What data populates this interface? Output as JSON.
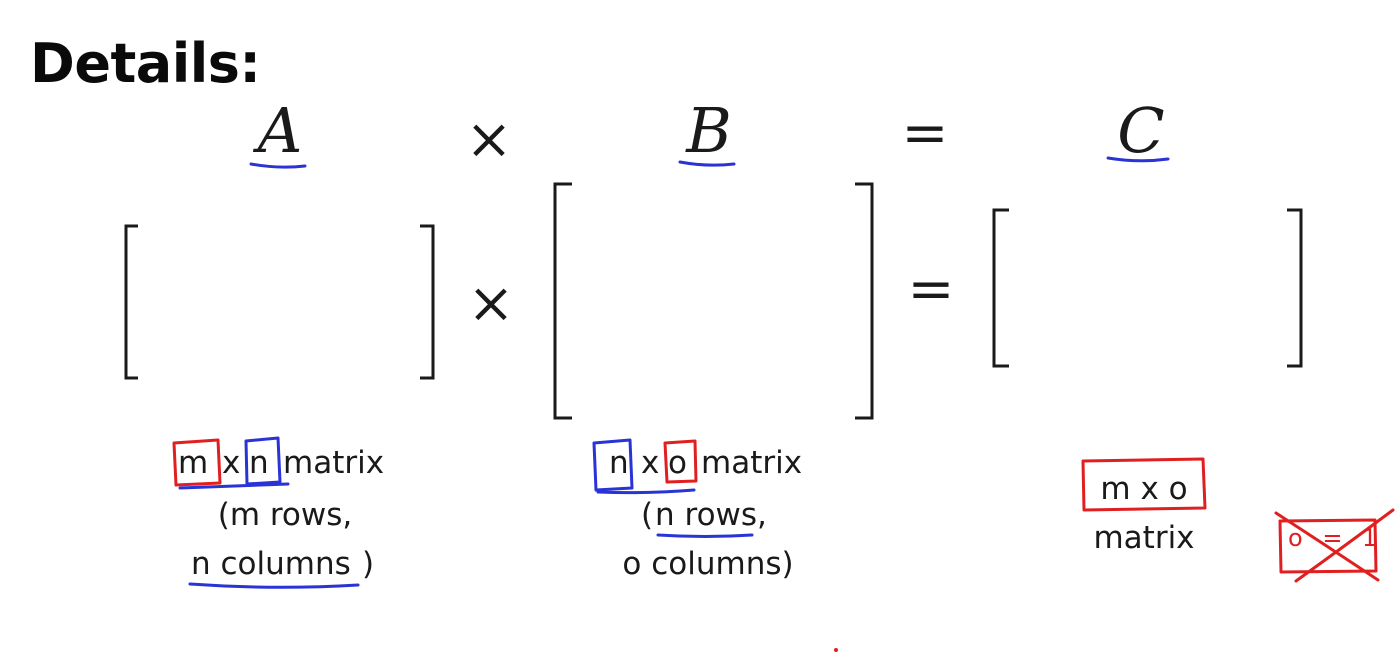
{
  "slide": {
    "title": "Details:",
    "equation": {
      "a": "A",
      "times": "×",
      "b": "B",
      "equals": "=",
      "c": "C"
    },
    "matrix_a": {
      "dim_1": "m",
      "dim_x": "x",
      "dim_2": "n",
      "word": "matrix",
      "line_1": "(m rows,",
      "line_2_main": "n columns",
      "line_2_close": ")"
    },
    "matrix_b": {
      "dim_1": "n",
      "dim_x": "x",
      "dim_2": "o",
      "word": "matrix",
      "line_1_open": "(",
      "line_1_main": "n rows,",
      "line_2": "o columns)"
    },
    "matrix_c": {
      "dims": "m x o",
      "word": "matrix"
    },
    "crossed_note": "o = 1"
  },
  "colors": {
    "ink_red": "#e02020",
    "ink_blue": "#2a33d6",
    "text": "#1a1a1a"
  }
}
